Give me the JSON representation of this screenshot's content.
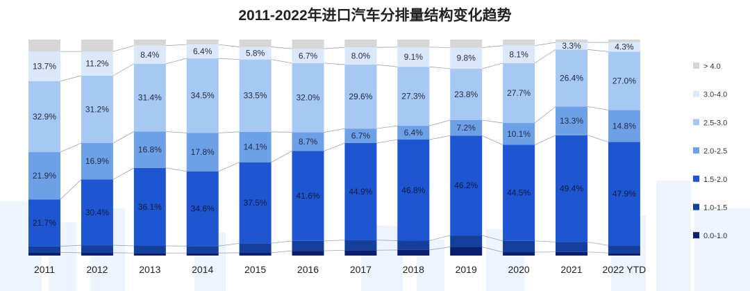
{
  "chart_data": {
    "type": "bar",
    "stacked": true,
    "normalized_percent": true,
    "title": "2011-2022年进口汽车分排量结构变化趋势",
    "xlabel": "",
    "ylabel": "",
    "ylim": [
      0,
      100
    ],
    "grid": false,
    "legend_position": "right",
    "categories": [
      "2011",
      "2012",
      "2013",
      "2014",
      "2015",
      "2016",
      "2017",
      "2018",
      "2019",
      "2020",
      "2021",
      "2022 YTD"
    ],
    "series": [
      {
        "name": "0.0-1.0",
        "color": "#0b1f6e",
        "values": [
          1.5,
          1.3,
          1.2,
          1.2,
          1.3,
          2.2,
          2.5,
          2.6,
          4.0,
          1.6,
          1.7,
          1.2
        ]
      },
      {
        "name": "1.0-1.5",
        "color": "#153f9c",
        "values": [
          2.8,
          3.5,
          3.3,
          3.2,
          4.4,
          4.6,
          4.7,
          4.3,
          5.3,
          5.2,
          4.6,
          3.5
        ]
      },
      {
        "name": "1.5-2.0",
        "color": "#1e56d2",
        "values": [
          21.7,
          30.4,
          36.1,
          34.6,
          37.5,
          41.6,
          44.9,
          46.8,
          46.2,
          44.5,
          49.4,
          47.9
        ]
      },
      {
        "name": "2.0-2.5",
        "color": "#6ea0e8",
        "values": [
          21.9,
          16.9,
          16.8,
          17.8,
          14.1,
          8.7,
          6.7,
          6.4,
          7.2,
          10.1,
          13.3,
          14.8
        ]
      },
      {
        "name": "2.5-3.0",
        "color": "#a8c8f4",
        "values": [
          32.9,
          31.2,
          31.4,
          34.5,
          33.5,
          32.0,
          29.6,
          27.3,
          23.8,
          27.7,
          26.4,
          27.0
        ]
      },
      {
        "name": "3.0-4.0",
        "color": "#dbe8fb",
        "values": [
          13.7,
          11.2,
          8.4,
          6.4,
          5.8,
          6.7,
          8.0,
          9.1,
          9.8,
          8.1,
          3.3,
          4.3
        ]
      },
      {
        "name": "> 4.0",
        "color": "#d6d6d6",
        "values": [
          5.5,
          5.5,
          2.8,
          2.3,
          3.4,
          4.2,
          3.6,
          3.5,
          3.7,
          2.8,
          1.3,
          1.3
        ]
      }
    ],
    "data_labels": [
      {
        "series": "1.5-2.0",
        "labels": [
          "21.7%",
          "30.4%",
          "36.1%",
          "34.6%",
          "37.5%",
          "41.6%",
          "44.9%",
          "46.8%",
          "46.2%",
          "44.5%",
          "49.4%",
          "47.9%"
        ]
      },
      {
        "series": "2.0-2.5",
        "labels": [
          "21.9%",
          "16.9%",
          "16.8%",
          "17.8%",
          "14.1%",
          "8.7%",
          "6.7%",
          "6.4%",
          "7.2%",
          "10.1%",
          "13.3%",
          "14.8%"
        ]
      },
      {
        "series": "2.5-3.0",
        "labels": [
          "32.9%",
          "31.2%",
          "31.4%",
          "34.5%",
          "33.5%",
          "32.0%",
          "29.6%",
          "27.3%",
          "23.8%",
          "27.7%",
          "26.4%",
          "27.0%"
        ]
      },
      {
        "series": "3.0-4.0",
        "labels": [
          "13.7%",
          "11.2%",
          "8.4%",
          "6.4%",
          "5.8%",
          "6.7%",
          "8.0%",
          "9.1%",
          "9.8%",
          "8.1%",
          "3.3%",
          "4.3%"
        ]
      }
    ],
    "legend": [
      "> 4.0",
      "3.0-4.0",
      "2.5-3.0",
      "2.0-2.5",
      "1.5-2.0",
      "1.0-1.5",
      "0.0-1.0"
    ]
  }
}
